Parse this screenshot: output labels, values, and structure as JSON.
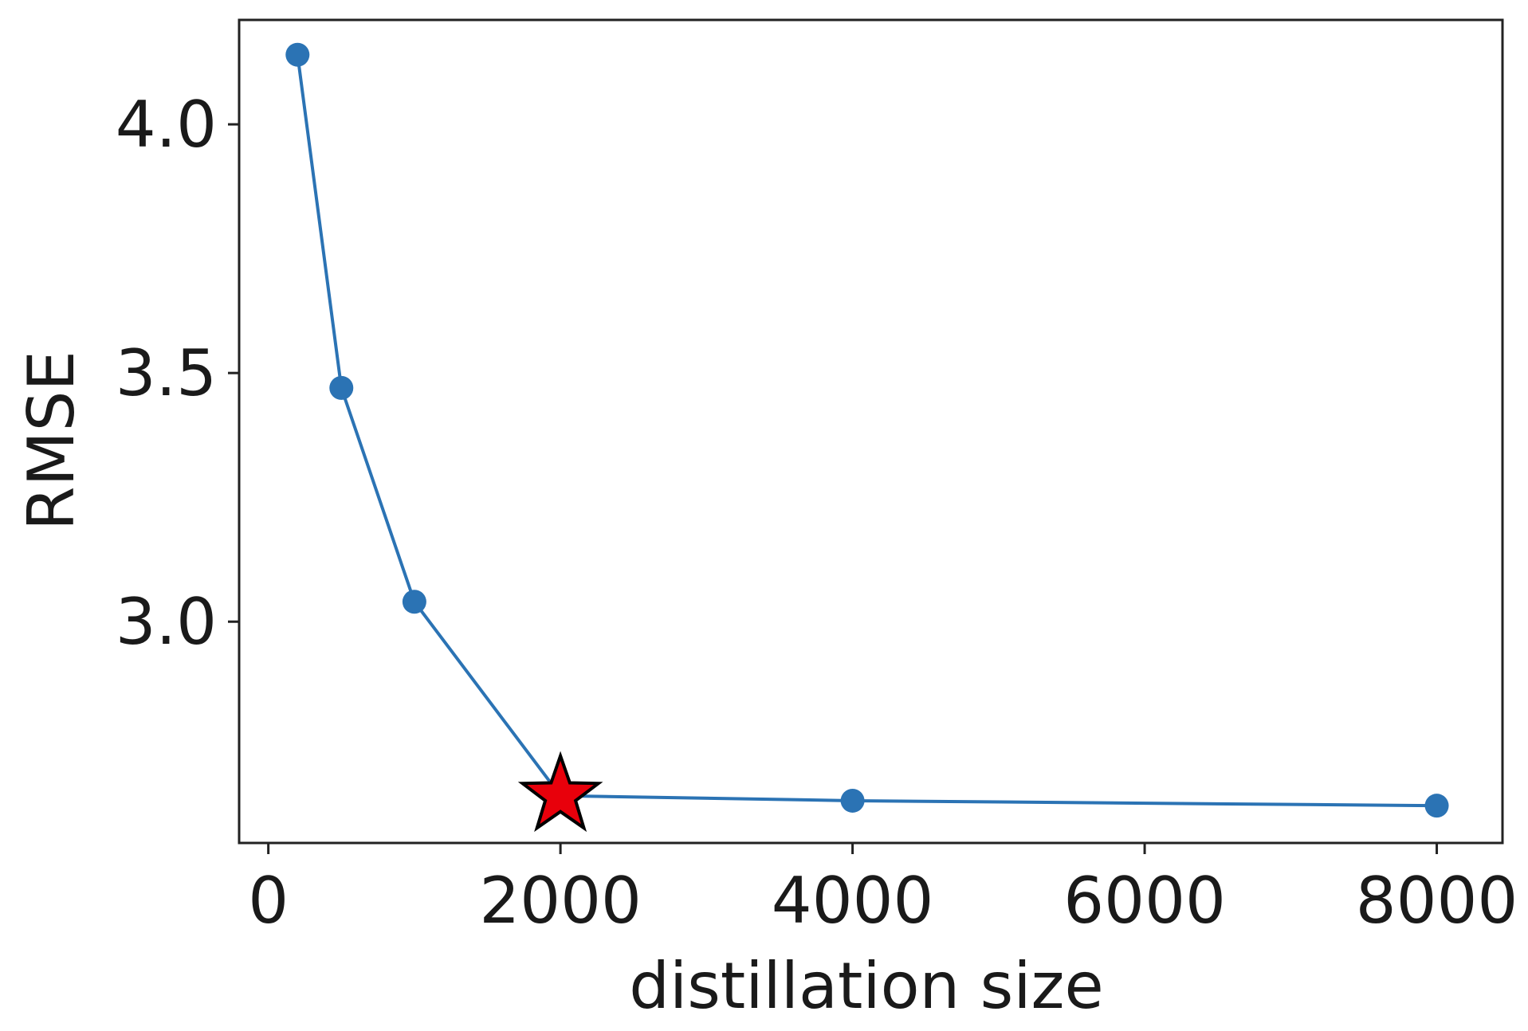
{
  "chart_data": {
    "type": "line",
    "title": "",
    "xlabel": "distillation size",
    "ylabel": "RMSE",
    "xlim": [
      -200,
      8450
    ],
    "ylim": [
      2.555,
      4.21
    ],
    "xticks": [
      0,
      2000,
      4000,
      6000,
      8000
    ],
    "xtick_labels": [
      "0",
      "2000",
      "4000",
      "6000",
      "8000"
    ],
    "yticks": [
      3.0,
      3.5,
      4.0
    ],
    "ytick_labels": [
      "3.0",
      "3.5",
      "4.0"
    ],
    "grid": false,
    "series": [
      {
        "x": [
          200,
          500,
          1000,
          2000,
          4000,
          8000
        ],
        "y": [
          4.14,
          3.47,
          3.04,
          2.65,
          2.64,
          2.63
        ],
        "color": "#2b73b4",
        "marker": "circle"
      }
    ],
    "highlight": {
      "x": 2000,
      "y": 2.65,
      "marker": "star",
      "color": "#e8000b",
      "edge_color": "#000000"
    }
  }
}
